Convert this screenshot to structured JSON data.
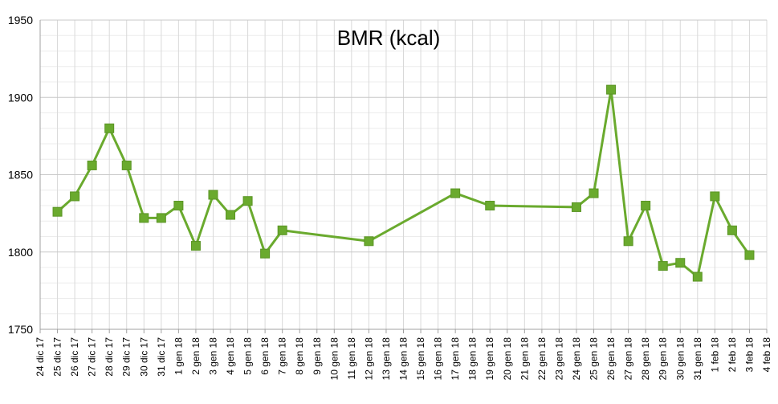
{
  "chart_data": {
    "type": "line",
    "title": "BMR (kcal)",
    "xlabel": "",
    "ylabel": "",
    "ylim": [
      1750,
      1950
    ],
    "y_ticks": [
      1750,
      1800,
      1850,
      1900,
      1950
    ],
    "grid": true,
    "legend": "none",
    "x_ticks": [
      "24 dic 17",
      "25 dic 17",
      "26 dic 17",
      "27 dic 17",
      "28 dic 17",
      "29 dic 17",
      "30 dic 17",
      "31 dic 17",
      "1 gen 18",
      "2 gen 18",
      "3 gen 18",
      "4 gen 18",
      "5 gen 18",
      "6 gen 18",
      "7 gen 18",
      "8 gen 18",
      "9 gen 18",
      "10 gen 18",
      "11 gen 18",
      "12 gen 18",
      "13 gen 18",
      "14 gen 18",
      "15 gen 18",
      "16 gen 18",
      "17 gen 18",
      "18 gen 18",
      "19 gen 18",
      "20 gen 18",
      "21 gen 18",
      "22 gen 18",
      "23 gen 18",
      "24 gen 18",
      "25 gen 18",
      "26 gen 18",
      "27 gen 18",
      "28 gen 18",
      "29 gen 18",
      "30 gen 18",
      "31 gen 18",
      "1 feb 18",
      "2 feb 18",
      "3 feb 18",
      "4 feb 18"
    ],
    "series": [
      {
        "color": "#6aaa2e",
        "points": [
          {
            "x": "25 dic 17",
            "y": 1826
          },
          {
            "x": "26 dic 17",
            "y": 1836
          },
          {
            "x": "27 dic 17",
            "y": 1856
          },
          {
            "x": "28 dic 17",
            "y": 1880
          },
          {
            "x": "29 dic 17",
            "y": 1856
          },
          {
            "x": "30 dic 17",
            "y": 1822
          },
          {
            "x": "31 dic 17",
            "y": 1822
          },
          {
            "x": "1 gen 18",
            "y": 1830
          },
          {
            "x": "2 gen 18",
            "y": 1804
          },
          {
            "x": "3 gen 18",
            "y": 1837
          },
          {
            "x": "4 gen 18",
            "y": 1824
          },
          {
            "x": "5 gen 18",
            "y": 1833
          },
          {
            "x": "6 gen 18",
            "y": 1799
          },
          {
            "x": "7 gen 18",
            "y": 1814
          },
          {
            "x": "12 gen 18",
            "y": 1807
          },
          {
            "x": "17 gen 18",
            "y": 1838
          },
          {
            "x": "19 gen 18",
            "y": 1830
          },
          {
            "x": "24 gen 18",
            "y": 1829
          },
          {
            "x": "25 gen 18",
            "y": 1838
          },
          {
            "x": "26 gen 18",
            "y": 1905
          },
          {
            "x": "27 gen 18",
            "y": 1807
          },
          {
            "x": "28 gen 18",
            "y": 1830
          },
          {
            "x": "29 gen 18",
            "y": 1791
          },
          {
            "x": "30 gen 18",
            "y": 1793
          },
          {
            "x": "31 gen 18",
            "y": 1784
          },
          {
            "x": "1 feb 18",
            "y": 1836
          },
          {
            "x": "2 feb 18",
            "y": 1814
          },
          {
            "x": "3 feb 18",
            "y": 1798
          }
        ]
      }
    ]
  }
}
